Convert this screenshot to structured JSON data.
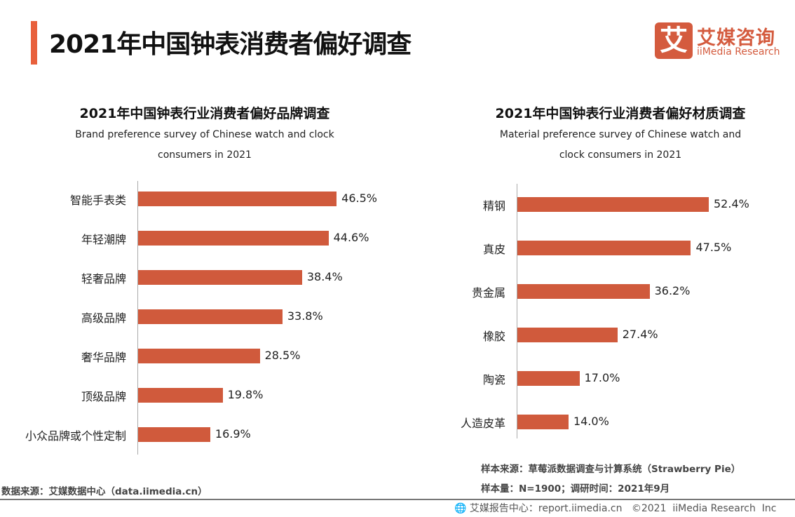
{
  "header": {
    "title": "2021年中国钟表消费者偏好调查",
    "logo_mark": "艾",
    "logo_cn": "艾媒咨询",
    "logo_en": "iiMedia Research"
  },
  "colors": {
    "bar": "#D05A3C",
    "accent": "#E8603C"
  },
  "chart_data": [
    {
      "type": "bar",
      "orientation": "horizontal",
      "title": "2021年中国钟表行业消费者偏好品牌调查",
      "subtitle": "Brand preference survey of Chinese watch and clock consumers in 2021",
      "subtitle_lines": [
        "Brand preference survey of Chinese watch and clock",
        "consumers in 2021"
      ],
      "categories": [
        "智能手表类",
        "年轻潮牌",
        "轻奢品牌",
        "高级品牌",
        "奢华品牌",
        "顶级品牌",
        "小众品牌或个性定制"
      ],
      "values": [
        46.5,
        44.6,
        38.4,
        33.8,
        28.5,
        19.8,
        16.9
      ],
      "labels": [
        "46.5%",
        "44.6%",
        "38.4%",
        "33.8%",
        "28.5%",
        "19.8%",
        "16.9%"
      ],
      "unit": "%",
      "grid": false
    },
    {
      "type": "bar",
      "orientation": "horizontal",
      "title": "2021年中国钟表行业消费者偏好材质调查",
      "subtitle": "Material preference survey of Chinese watch and clock consumers in 2021",
      "subtitle_lines": [
        "Material preference survey of Chinese watch and",
        "clock consumers in 2021"
      ],
      "categories": [
        "精钢",
        "真皮",
        "贵金属",
        "橡胶",
        "陶瓷",
        "人造皮革"
      ],
      "values": [
        52.4,
        47.5,
        36.2,
        27.4,
        17.0,
        14.0
      ],
      "labels": [
        "52.4%",
        "47.5%",
        "36.2%",
        "27.4%",
        "17.0%",
        "14.0%"
      ],
      "unit": "%",
      "grid": false
    }
  ],
  "notes": {
    "source_left": "数据来源：艾媒数据中心（data.iimedia.cn）",
    "sample_source": "样本来源：草莓派数据调查与计算系统（Strawberry Pie）",
    "sample_size": "样本量：N=1900；调研时间：2021年9月"
  },
  "footer": {
    "icon": "globe-cursor-icon",
    "text": "艾媒报告中心：report.iimedia.cn   ©2021  iiMedia Research  Inc"
  }
}
